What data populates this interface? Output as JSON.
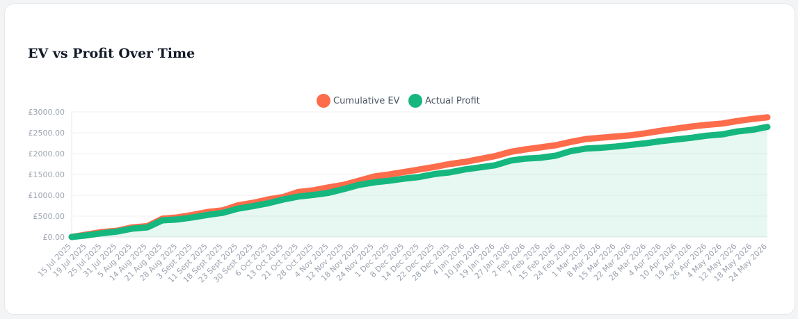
{
  "chart_data": {
    "type": "line",
    "title": "EV vs Profit Over Time",
    "categories": [
      "15 Jul 2025",
      "19 Jul 2025",
      "25 Jul 2025",
      "31 Jul 2025",
      "5 Aug 2025",
      "14 Aug 2025",
      "21 Aug 2025",
      "28 Aug 2025",
      "3 Sept 2025",
      "11 Sept 2025",
      "18 Sept 2025",
      "23 Sept 2025",
      "30 Sept 2025",
      "6 Oct 2025",
      "13 Oct 2025",
      "21 Oct 2025",
      "28 Oct 2025",
      "4 Nov 2025",
      "12 Nov 2025",
      "18 Nov 2025",
      "24 Nov 2025",
      "1 Dec 2025",
      "8 Dec 2025",
      "14 Dec 2025",
      "22 Dec 2025",
      "28 Dec 2025",
      "4 Jan 2026",
      "10 Jan 2026",
      "19 Jan 2026",
      "27 Jan 2026",
      "2 Feb 2026",
      "7 Feb 2026",
      "15 Feb 2026",
      "24 Feb 2026",
      "1 Mar 2026",
      "8 Mar 2026",
      "15 Mar 2026",
      "22 Mar 2026",
      "28 Mar 2026",
      "4 Apr 2026",
      "10 Apr 2026",
      "19 Apr 2026",
      "26 Apr 2026",
      "4 May 2026",
      "12 May 2026",
      "18 May 2026",
      "24 May 2026"
    ],
    "series": [
      {
        "name": "Cumulative EV",
        "color": "#fd6c4b",
        "fill": false,
        "values": [
          0,
          60,
          120,
          150,
          230,
          260,
          440,
          470,
          530,
          600,
          640,
          760,
          820,
          900,
          960,
          1080,
          1120,
          1190,
          1250,
          1350,
          1450,
          1500,
          1560,
          1620,
          1680,
          1750,
          1800,
          1870,
          1940,
          2040,
          2100,
          2150,
          2200,
          2280,
          2350,
          2380,
          2410,
          2440,
          2490,
          2550,
          2600,
          2650,
          2690,
          2720,
          2780,
          2830,
          2870
        ]
      },
      {
        "name": "Actual Profit",
        "color": "#15b77f",
        "fill": true,
        "values": [
          0,
          40,
          90,
          130,
          200,
          230,
          400,
          420,
          470,
          530,
          580,
          680,
          740,
          810,
          900,
          970,
          1010,
          1060,
          1150,
          1250,
          1310,
          1350,
          1400,
          1440,
          1510,
          1550,
          1620,
          1670,
          1720,
          1830,
          1880,
          1900,
          1950,
          2060,
          2120,
          2140,
          2170,
          2210,
          2250,
          2300,
          2340,
          2380,
          2430,
          2460,
          2530,
          2570,
          2640
        ]
      }
    ],
    "ylim": [
      0,
      3000
    ],
    "yticks": [
      {
        "value": 0,
        "label": "£0.00"
      },
      {
        "value": 500,
        "label": "£500.00"
      },
      {
        "value": 1000,
        "label": "£1000.00"
      },
      {
        "value": 1500,
        "label": "£1500.00"
      },
      {
        "value": 2000,
        "label": "£2000.00"
      },
      {
        "value": 2500,
        "label": "£2500.00"
      },
      {
        "value": 3000,
        "label": "£3000.00"
      }
    ],
    "grid": true,
    "legend": "top"
  }
}
